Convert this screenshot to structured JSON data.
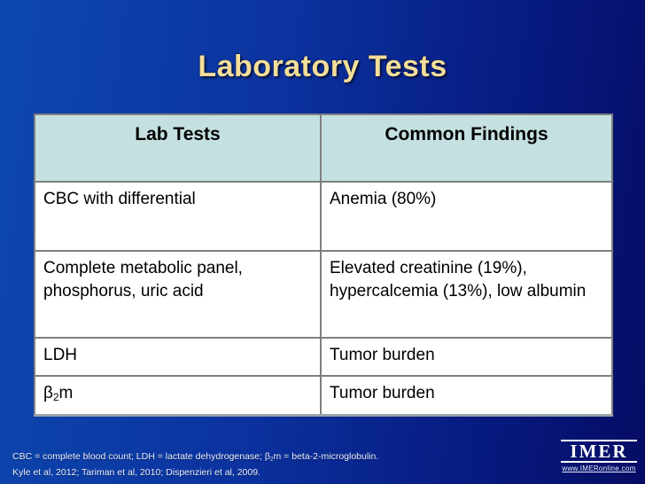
{
  "slide": {
    "title": "Laboratory Tests"
  },
  "table": {
    "columns": [
      "Lab Tests",
      "Common Findings"
    ],
    "rows": [
      {
        "test": "CBC with differential",
        "finding": "Anemia (80%)"
      },
      {
        "test": "Complete metabolic panel, phosphorus, uric acid",
        "finding": "Elevated creatinine (19%), hypercalcemia (13%), low albumin"
      },
      {
        "test": "LDH",
        "finding": "Tumor burden"
      },
      {
        "test_base": "β",
        "test_sub": "2",
        "test_rest": "m",
        "finding": "Tumor burden"
      }
    ]
  },
  "footnote": {
    "abbrev_pre": "CBC = complete blood count; LDH = lactate dehydrogenase; β",
    "abbrev_sub": "2",
    "abbrev_post": "m = beta-2-microglobulin.",
    "citations": "Kyle et al, 2012; Tariman et al, 2010; Dispenzieri et al, 2009."
  },
  "logo": {
    "name": "IMER",
    "url": "www.IMERonline.com"
  },
  "colors": {
    "title_text": "#F3DE99",
    "header_bg": "#C5E0E0",
    "background_left": "#0D48AE",
    "background_right": "#060C64"
  }
}
